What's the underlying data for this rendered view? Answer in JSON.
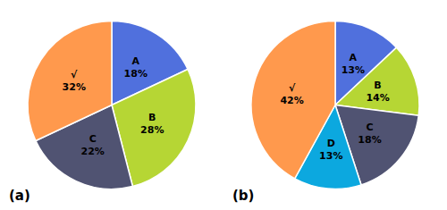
{
  "chart_data": [
    {
      "type": "pie",
      "title": "(a)",
      "categories": [
        "A",
        "B",
        "C",
        "√"
      ],
      "values": [
        18,
        28,
        22,
        32
      ],
      "value_labels": [
        "18%",
        "28%",
        "22%",
        "32%"
      ],
      "data_labels": true
    },
    {
      "type": "pie",
      "title": "(b)",
      "categories": [
        "A",
        "B",
        "C",
        "D",
        "√"
      ],
      "values": [
        13,
        14,
        18,
        13,
        42
      ],
      "value_labels": [
        "13%",
        "14%",
        "18%",
        "13%",
        "42%"
      ],
      "data_labels": true
    }
  ]
}
